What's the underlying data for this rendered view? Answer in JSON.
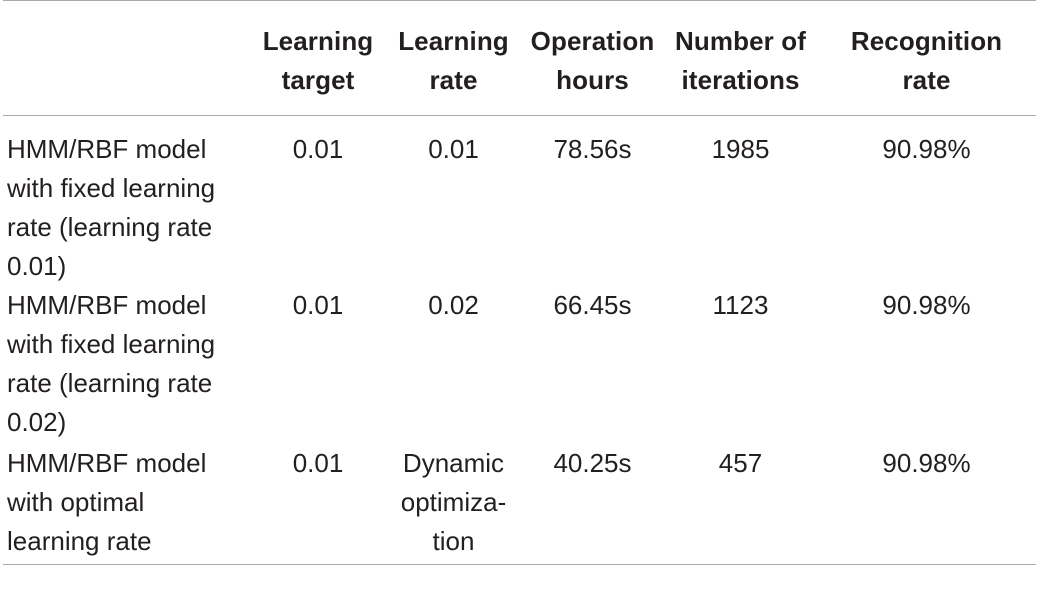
{
  "table": {
    "headers": [
      {
        "lines": [
          ""
        ]
      },
      {
        "lines": [
          "Learning",
          "target"
        ]
      },
      {
        "lines": [
          "Learning",
          "rate"
        ]
      },
      {
        "lines": [
          "Operation",
          "hours"
        ]
      },
      {
        "lines": [
          "Number of",
          "iterations"
        ]
      },
      {
        "lines": [
          "Recognition",
          "rate"
        ]
      }
    ],
    "rows": [
      {
        "label_lines": [
          "HMM/RBF model",
          "with fixed learning",
          "rate (learning rate",
          "0.01)"
        ],
        "learning_target": "0.01",
        "learning_rate_lines": [
          "0.01"
        ],
        "operation_hours": "78.56s",
        "iterations": "1985",
        "recognition_rate": "90.98%"
      },
      {
        "label_lines": [
          "HMM/RBF model",
          "with fixed learning",
          "rate (learning rate",
          "0.02)"
        ],
        "learning_target": "0.01",
        "learning_rate_lines": [
          "0.02"
        ],
        "operation_hours": "66.45s",
        "iterations": "1123",
        "recognition_rate": "90.98%"
      },
      {
        "label_lines": [
          "HMM/RBF model",
          "with optimal",
          "learning rate"
        ],
        "learning_target": "0.01",
        "learning_rate_lines": [
          "Dynamic",
          "optimiza-",
          "tion"
        ],
        "operation_hours": "40.25s",
        "iterations": "457",
        "recognition_rate": "90.98%"
      }
    ]
  }
}
